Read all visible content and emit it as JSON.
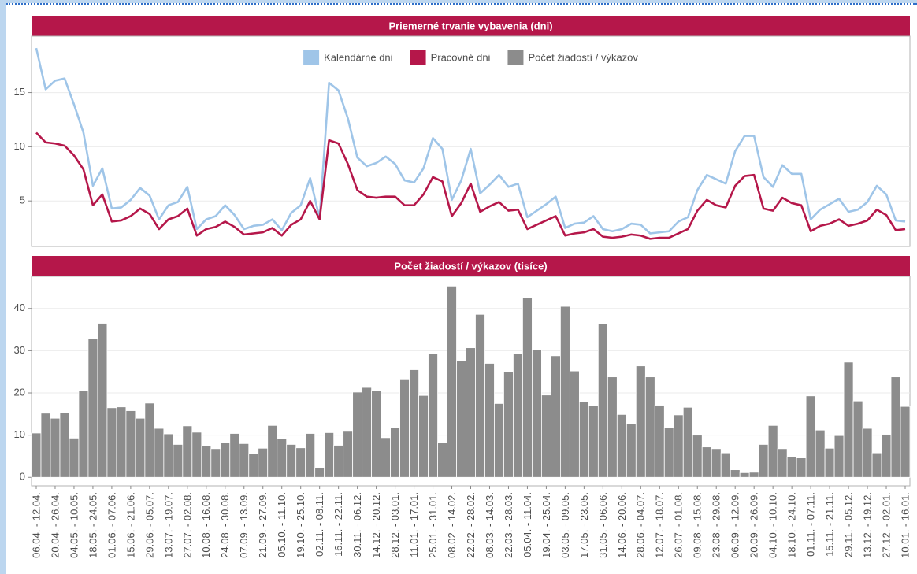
{
  "chart_data": [
    {
      "type": "line",
      "title": "Priemerné trvanie vybavenia (dni)",
      "legend": "top",
      "grid": true,
      "ylim": [
        0.8,
        20.2
      ],
      "yticks": [
        5,
        10,
        15
      ],
      "series": [
        {
          "name": "Kalendárne dni",
          "color": "#9fc5e8",
          "values": [
            19.1,
            15.3,
            16.1,
            16.3,
            13.9,
            11.3,
            6.4,
            8,
            4.3,
            4.4,
            5.1,
            6.2,
            5.5,
            3.3,
            4.6,
            4.9,
            6.3,
            2.4,
            3.3,
            3.6,
            4.6,
            3.7,
            2.4,
            2.7,
            2.8,
            3.3,
            2.3,
            3.9,
            4.6,
            7.1,
            3.4,
            15.9,
            15.2,
            12.6,
            9,
            8.2,
            8.5,
            9.1,
            8.4,
            6.9,
            6.7,
            8,
            10.8,
            9.8,
            5.1,
            6.9,
            9.8,
            5.7,
            6.5,
            7.4,
            6.3,
            6.6,
            3.5,
            4.1,
            4.7,
            5.4,
            2.5,
            2.9,
            3,
            3.6,
            2.4,
            2.2,
            2.4,
            2.9,
            2.8,
            2,
            2.1,
            2.2,
            3.1,
            3.5,
            6,
            7.4,
            7,
            6.6,
            9.6,
            11,
            11,
            7.2,
            6.3,
            8.3,
            7.5,
            7.5,
            3.3,
            4.2,
            4.7,
            5.2,
            4,
            4.2,
            4.9,
            6.4,
            5.6,
            3.2,
            3.1
          ]
        },
        {
          "name": "Pracovné dni",
          "color": "#b5174a",
          "values": [
            11.3,
            10.4,
            10.3,
            10.1,
            9.2,
            7.9,
            4.6,
            5.6,
            3.1,
            3.2,
            3.6,
            4.3,
            3.8,
            2.4,
            3.3,
            3.6,
            4.3,
            1.8,
            2.4,
            2.6,
            3.1,
            2.6,
            1.9,
            2,
            2.1,
            2.5,
            1.8,
            2.8,
            3.3,
            5,
            3.3,
            10.6,
            10.3,
            8.4,
            6,
            5.4,
            5.3,
            5.4,
            5.4,
            4.6,
            4.6,
            5.6,
            7.2,
            6.8,
            3.6,
            4.8,
            6.6,
            4,
            4.5,
            4.9,
            4.1,
            4.2,
            2.4,
            2.8,
            3.2,
            3.6,
            1.8,
            2,
            2.1,
            2.4,
            1.7,
            1.6,
            1.7,
            1.9,
            1.8,
            1.5,
            1.6,
            1.6,
            2,
            2.4,
            4.1,
            5.1,
            4.6,
            4.4,
            6.4,
            7.3,
            7.4,
            4.3,
            4.1,
            5.3,
            4.8,
            4.6,
            2.2,
            2.7,
            2.9,
            3.3,
            2.7,
            2.9,
            3.2,
            4.2,
            3.7,
            2.3,
            2.4
          ]
        }
      ]
    },
    {
      "type": "bar",
      "title": "Počet žiadostí / výkazov (tisíce)",
      "grid": true,
      "ylim": [
        -2,
        47.6
      ],
      "yticks": [
        0,
        10,
        20,
        30,
        40
      ],
      "categories": [
        "06.04. - 12.04.",
        null,
        "20.04. - 26.04.",
        null,
        "04.05. - 10.05.",
        null,
        "18.05. - 24.05.",
        null,
        "01.06. - 07.06.",
        null,
        "15.06. - 21.06.",
        null,
        "29.06. - 05.07.",
        null,
        "13.07. - 19.07.",
        null,
        "27.07. - 02.08.",
        null,
        "10.08. - 16.08.",
        null,
        "24.08. - 30.08.",
        null,
        "07.09. - 13.09.",
        null,
        "21.09. - 27.09.",
        null,
        "05.10. - 11.10.",
        null,
        "19.10. - 25.10.",
        null,
        "02.11. - 08.11.",
        null,
        "16.11. - 22.11.",
        null,
        "30.11. - 06.12.",
        null,
        "14.12. - 20.12.",
        null,
        "28.12. - 03.01.",
        null,
        "11.01. - 17.01.",
        null,
        "25.01. - 31.01.",
        null,
        "08.02. - 14.02.",
        null,
        "22.02. - 28.02.",
        null,
        "08.03. - 14.03.",
        null,
        "22.03. - 28.03.",
        null,
        "05.04. - 11.04.",
        null,
        "19.04. - 25.04.",
        null,
        "03.05. - 09.05.",
        null,
        "17.05. - 23.05.",
        null,
        "31.05. - 06.06.",
        null,
        "14.06. - 20.06.",
        null,
        "28.06. - 04.07.",
        null,
        "12.07. - 18.07.",
        null,
        "26.07. - 01.08.",
        null,
        "09.08. - 15.08.",
        null,
        "23.08. - 29.08.",
        null,
        "06.09. - 12.09.",
        null,
        "20.09. - 26.09.",
        null,
        "04.10. - 10.10.",
        null,
        "18.10. - 24.10.",
        null,
        "01.11. - 07.11.",
        null,
        "15.11. - 21.11.",
        null,
        "29.11. - 05.12.",
        null,
        "13.12. - 19.12.",
        null,
        "27.12. - 02.01.",
        null,
        "10.01. - 16.01."
      ],
      "series": [
        {
          "name": "Počet žiadostí / výkazov",
          "color": "#8c8c8c",
          "values": [
            10.5,
            15.2,
            14,
            15.3,
            9.3,
            20.5,
            32.8,
            36.5,
            16.5,
            16.7,
            15.8,
            14,
            17.6,
            11.6,
            10.3,
            7.8,
            12.2,
            10.7,
            7.5,
            6.8,
            8.3,
            10.4,
            8,
            5.6,
            6.9,
            12.3,
            9.1,
            7.8,
            7,
            10.4,
            2.3,
            10.6,
            7.6,
            10.9,
            20.2,
            21.3,
            20.6,
            9.4,
            11.8,
            23.3,
            25.5,
            19.4,
            29.4,
            8.3,
            45.3,
            27.6,
            30.7,
            38.6,
            27,
            17.5,
            25,
            29.4,
            42.6,
            30.3,
            19.5,
            28.8,
            40.5,
            25.2,
            18,
            17,
            36.4,
            23.8,
            14.9,
            12.7,
            26.4,
            23.8,
            17.1,
            11.8,
            14.8,
            16.6,
            10,
            7.2,
            6.8,
            5.8,
            1.8,
            1.1,
            1.2,
            7.8,
            12.3,
            6.8,
            4.8,
            4.6,
            19.3,
            11.2,
            6.9,
            9.9,
            27.3,
            18.1,
            11.6,
            5.8,
            10.2,
            23.8,
            16.8
          ]
        }
      ]
    }
  ]
}
